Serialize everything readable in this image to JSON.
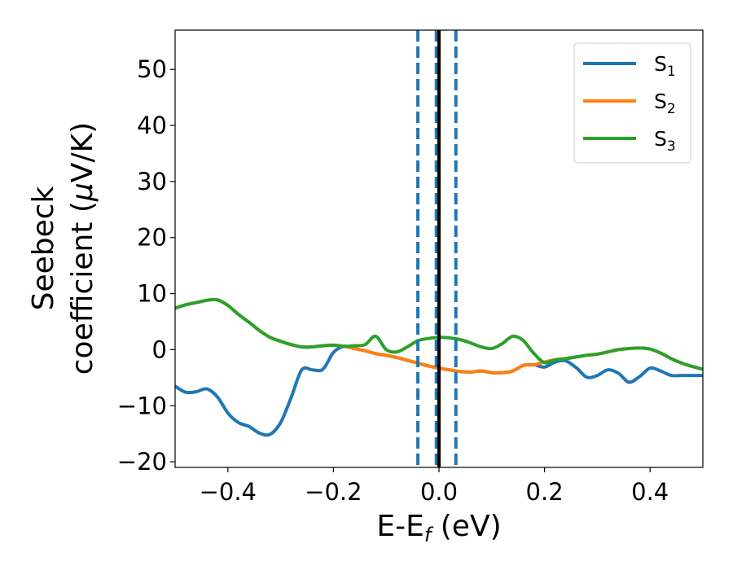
{
  "chart_data": {
    "type": "line",
    "xlabel": {
      "main": "E-E",
      "sub": "f",
      "unit": " (eV)"
    },
    "ylabel": {
      "line1": "Seebeck",
      "line2_prefix": "coefficient  (",
      "mu": "μ",
      "line2_suffix": "V/K)"
    },
    "xlim": [
      -0.5,
      0.5
    ],
    "ylim": [
      -21,
      57
    ],
    "x_ticks": [
      -0.4,
      -0.2,
      0.0,
      0.2,
      0.4
    ],
    "x_tick_labels": [
      "−0.4",
      "−0.2",
      "0.0",
      "0.2",
      "0.4"
    ],
    "y_ticks": [
      -20,
      -10,
      0,
      10,
      20,
      30,
      40,
      50
    ],
    "y_tick_labels": [
      "−20",
      "−10",
      "0",
      "10",
      "20",
      "30",
      "40",
      "50"
    ],
    "legend_position": "top-right",
    "series": [
      {
        "name": "S",
        "sub": "1",
        "color": "#1f77b4",
        "x": [
          -0.5,
          -0.48,
          -0.46,
          -0.44,
          -0.42,
          -0.4,
          -0.38,
          -0.36,
          -0.34,
          -0.32,
          -0.3,
          -0.28,
          -0.26,
          -0.24,
          -0.22,
          -0.2,
          -0.18,
          -0.16,
          -0.14,
          -0.12,
          -0.1,
          -0.08,
          -0.06,
          -0.04,
          -0.02,
          0.0,
          0.02,
          0.04,
          0.06,
          0.08,
          0.1,
          0.12,
          0.14,
          0.16,
          0.18,
          0.2,
          0.22,
          0.24,
          0.26,
          0.28,
          0.3,
          0.32,
          0.34,
          0.36,
          0.38,
          0.4,
          0.42,
          0.44,
          0.46,
          0.48,
          0.5
        ],
        "y": [
          -6.5,
          -7.6,
          -7.5,
          -7.0,
          -8.4,
          -11.3,
          -13.0,
          -13.7,
          -14.9,
          -15.1,
          -13.0,
          -8.5,
          -3.6,
          -3.6,
          -3.5,
          -0.5,
          0.6,
          0.2,
          -0.2,
          -0.7,
          -1.0,
          -1.4,
          -1.9,
          -2.4,
          -2.9,
          -3.3,
          -3.6,
          -3.9,
          -4.0,
          -3.8,
          -4.1,
          -4.1,
          -3.8,
          -2.8,
          -2.7,
          -3.1,
          -2.2,
          -2.0,
          -3.2,
          -4.9,
          -4.6,
          -3.6,
          -4.2,
          -5.8,
          -4.8,
          -3.3,
          -3.8,
          -4.6,
          -4.6,
          -4.6,
          -4.6
        ]
      },
      {
        "name": "S",
        "sub": "2",
        "color": "#ff7f0e",
        "x": [
          -0.5,
          -0.48,
          -0.46,
          -0.44,
          -0.42,
          -0.4,
          -0.38,
          -0.36,
          -0.34,
          -0.32,
          -0.3,
          -0.28,
          -0.26,
          -0.24,
          -0.22,
          -0.2,
          -0.18,
          -0.16,
          -0.14,
          -0.12,
          -0.1,
          -0.08,
          -0.06,
          -0.04,
          -0.02,
          0.0,
          0.02,
          0.04,
          0.06,
          0.08,
          0.1,
          0.12,
          0.14,
          0.16,
          0.18,
          0.2,
          0.22,
          0.24,
          0.26,
          0.28,
          0.3,
          0.32,
          0.34,
          0.36,
          0.38,
          0.4,
          0.42,
          0.44,
          0.46,
          0.48,
          0.5
        ],
        "y": [
          7.4,
          8.0,
          8.4,
          8.8,
          8.9,
          7.9,
          6.3,
          4.9,
          3.4,
          2.2,
          1.5,
          0.9,
          0.5,
          0.5,
          0.7,
          0.8,
          0.6,
          0.2,
          -0.2,
          -0.7,
          -1.0,
          -1.4,
          -1.9,
          -2.4,
          -2.9,
          -3.3,
          -3.6,
          -3.9,
          -4.0,
          -3.8,
          -4.1,
          -4.1,
          -3.8,
          -2.8,
          -2.7,
          -2.2,
          -1.8,
          -1.6,
          -1.3,
          -1.0,
          -0.8,
          -0.4,
          0.0,
          0.2,
          0.3,
          0.1,
          -0.6,
          -1.6,
          -2.4,
          -3.0,
          -3.5
        ]
      },
      {
        "name": "S",
        "sub": "3",
        "color": "#2ca02c",
        "x": [
          -0.5,
          -0.48,
          -0.46,
          -0.44,
          -0.42,
          -0.4,
          -0.38,
          -0.36,
          -0.34,
          -0.32,
          -0.3,
          -0.28,
          -0.26,
          -0.24,
          -0.22,
          -0.2,
          -0.18,
          -0.16,
          -0.14,
          -0.12,
          -0.1,
          -0.08,
          -0.06,
          -0.04,
          -0.02,
          0.0,
          0.02,
          0.04,
          0.06,
          0.08,
          0.1,
          0.12,
          0.14,
          0.16,
          0.18,
          0.2,
          0.22,
          0.24,
          0.26,
          0.28,
          0.3,
          0.32,
          0.34,
          0.36,
          0.38,
          0.4,
          0.42,
          0.44,
          0.46,
          0.48,
          0.5
        ],
        "y": [
          7.4,
          8.0,
          8.4,
          8.8,
          8.9,
          7.9,
          6.3,
          4.9,
          3.4,
          2.2,
          1.5,
          0.9,
          0.5,
          0.5,
          0.7,
          0.8,
          0.6,
          0.7,
          0.9,
          2.4,
          0.0,
          -0.4,
          0.5,
          1.6,
          2.0,
          2.2,
          2.1,
          1.8,
          1.2,
          0.5,
          0.2,
          1.1,
          2.4,
          1.6,
          -0.7,
          -2.3,
          -1.8,
          -1.6,
          -1.3,
          -1.0,
          -0.8,
          -0.4,
          0.0,
          0.2,
          0.3,
          0.1,
          -0.6,
          -1.6,
          -2.4,
          -3.0,
          -3.5
        ]
      }
    ],
    "vlines": [
      {
        "x": -0.04,
        "style": "dashed",
        "color": "#1f77b4"
      },
      {
        "x": -0.005,
        "style": "dashed",
        "color": "#1f77b4"
      },
      {
        "x": 0.032,
        "style": "dashed",
        "color": "#1f77b4"
      },
      {
        "x": 0.0,
        "style": "solid",
        "color": "#000000"
      }
    ]
  }
}
